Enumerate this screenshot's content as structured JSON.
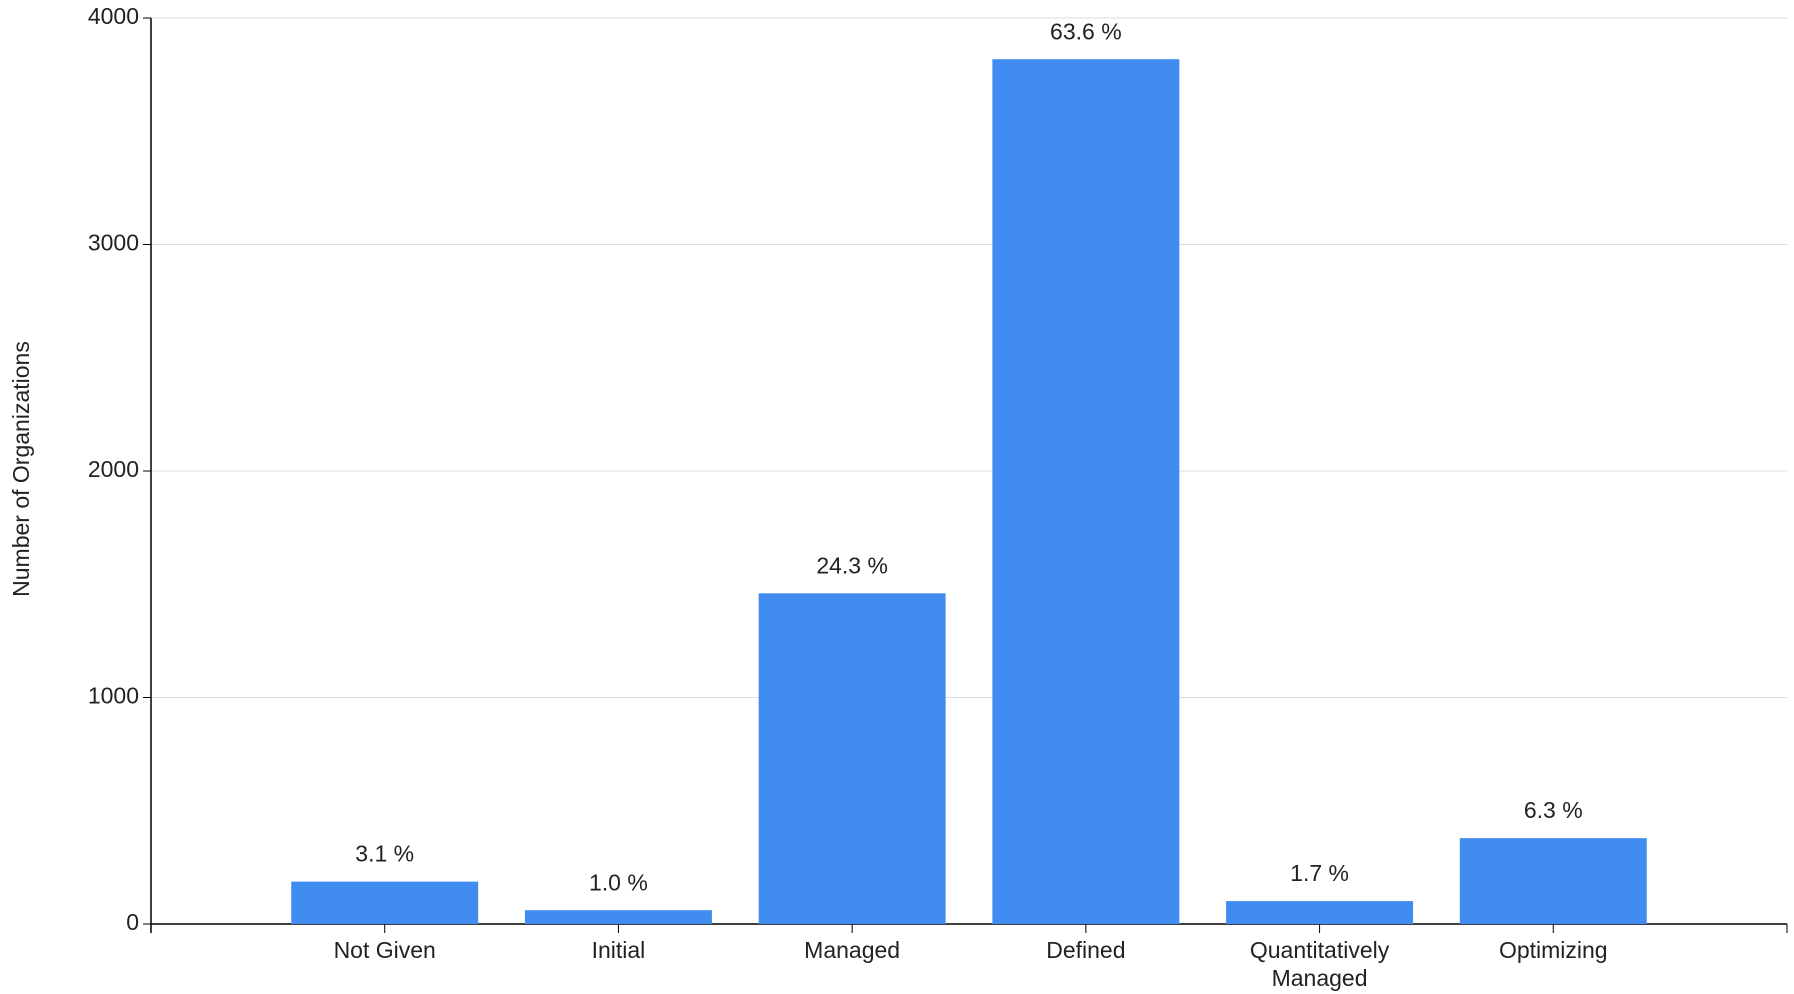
{
  "chart_data": {
    "type": "bar",
    "y_label": "Number of Organizations",
    "categories": [
      "Not Given",
      "Initial",
      "Managed",
      "Defined",
      "Quantitatively Managed",
      "Optimizing"
    ],
    "values": [
      187,
      61,
      1460,
      3818,
      101,
      379
    ],
    "annotations": [
      "3.1 %",
      "1.0 %",
      "24.3 %",
      "63.6 %",
      "1.7 %",
      "6.3 %"
    ],
    "color": "#418cf0",
    "ylim": [
      0,
      4000
    ],
    "yticks": [
      0,
      1000,
      2000,
      3000,
      4000
    ],
    "grid": true
  }
}
